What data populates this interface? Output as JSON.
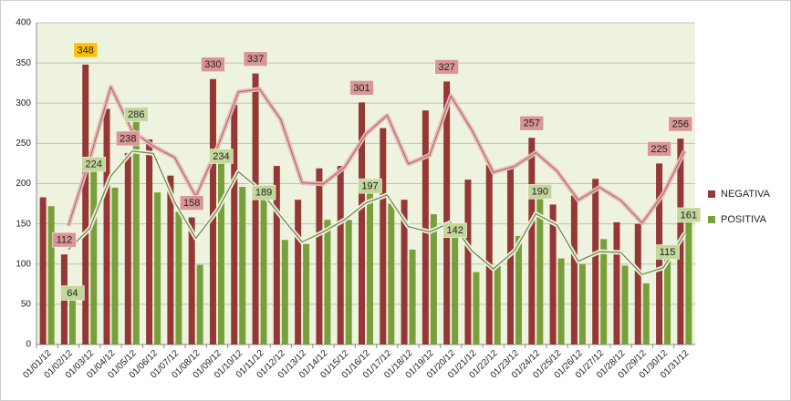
{
  "chart_data": {
    "type": "bar",
    "categories": [
      "01/01/12",
      "01/02/12",
      "01/03/12",
      "01/04/12",
      "01/05/12",
      "01/06/12",
      "01/07/12",
      "01/08/12",
      "01/09/12",
      "01/10/12",
      "01/11/12",
      "01/12/12",
      "01/13/12",
      "01/14/12",
      "01/15/12",
      "01/16/12",
      "01/17/12",
      "01/18/12",
      "01/19/12",
      "01/20/12",
      "01/21/12",
      "01/22/12",
      "01/23/12",
      "01/24/12",
      "01/25/12",
      "01/26/12",
      "01/27/12",
      "01/28/12",
      "01/29/12",
      "01/30/12",
      "01/31/12"
    ],
    "series": [
      {
        "name": "NEGATIVA",
        "color": "#953735",
        "label_color": "#d99694",
        "values": [
          183,
          112,
          348,
          293,
          238,
          255,
          210,
          158,
          330,
          298,
          337,
          222,
          180,
          219,
          222,
          301,
          269,
          180,
          291,
          327,
          205,
          223,
          220,
          257,
          174,
          185,
          206,
          152,
          150,
          225,
          256
        ],
        "labeled": [
          1,
          2,
          4,
          7,
          8,
          10,
          15,
          19,
          23,
          29,
          30
        ]
      },
      {
        "name": "POSITIVA",
        "color": "#77a03a",
        "label_color": "#c3d69b",
        "values": [
          172,
          64,
          224,
          195,
          286,
          189,
          165,
          99,
          234,
          196,
          189,
          130,
          125,
          155,
          155,
          197,
          175,
          118,
          162,
          142,
          90,
          98,
          135,
          190,
          107,
          100,
          131,
          98,
          76,
          115,
          161
        ],
        "labeled": [
          1,
          2,
          4,
          8,
          10,
          15,
          19,
          23,
          29,
          30
        ]
      }
    ],
    "highlight": {
      "series": 0,
      "index": 2,
      "color": "#ffc000"
    },
    "ylim": [
      0,
      400
    ],
    "yticks": [
      0,
      50,
      100,
      150,
      200,
      250,
      300,
      350,
      400
    ],
    "grid": true,
    "legend": "right",
    "trendline": "moving-average"
  }
}
